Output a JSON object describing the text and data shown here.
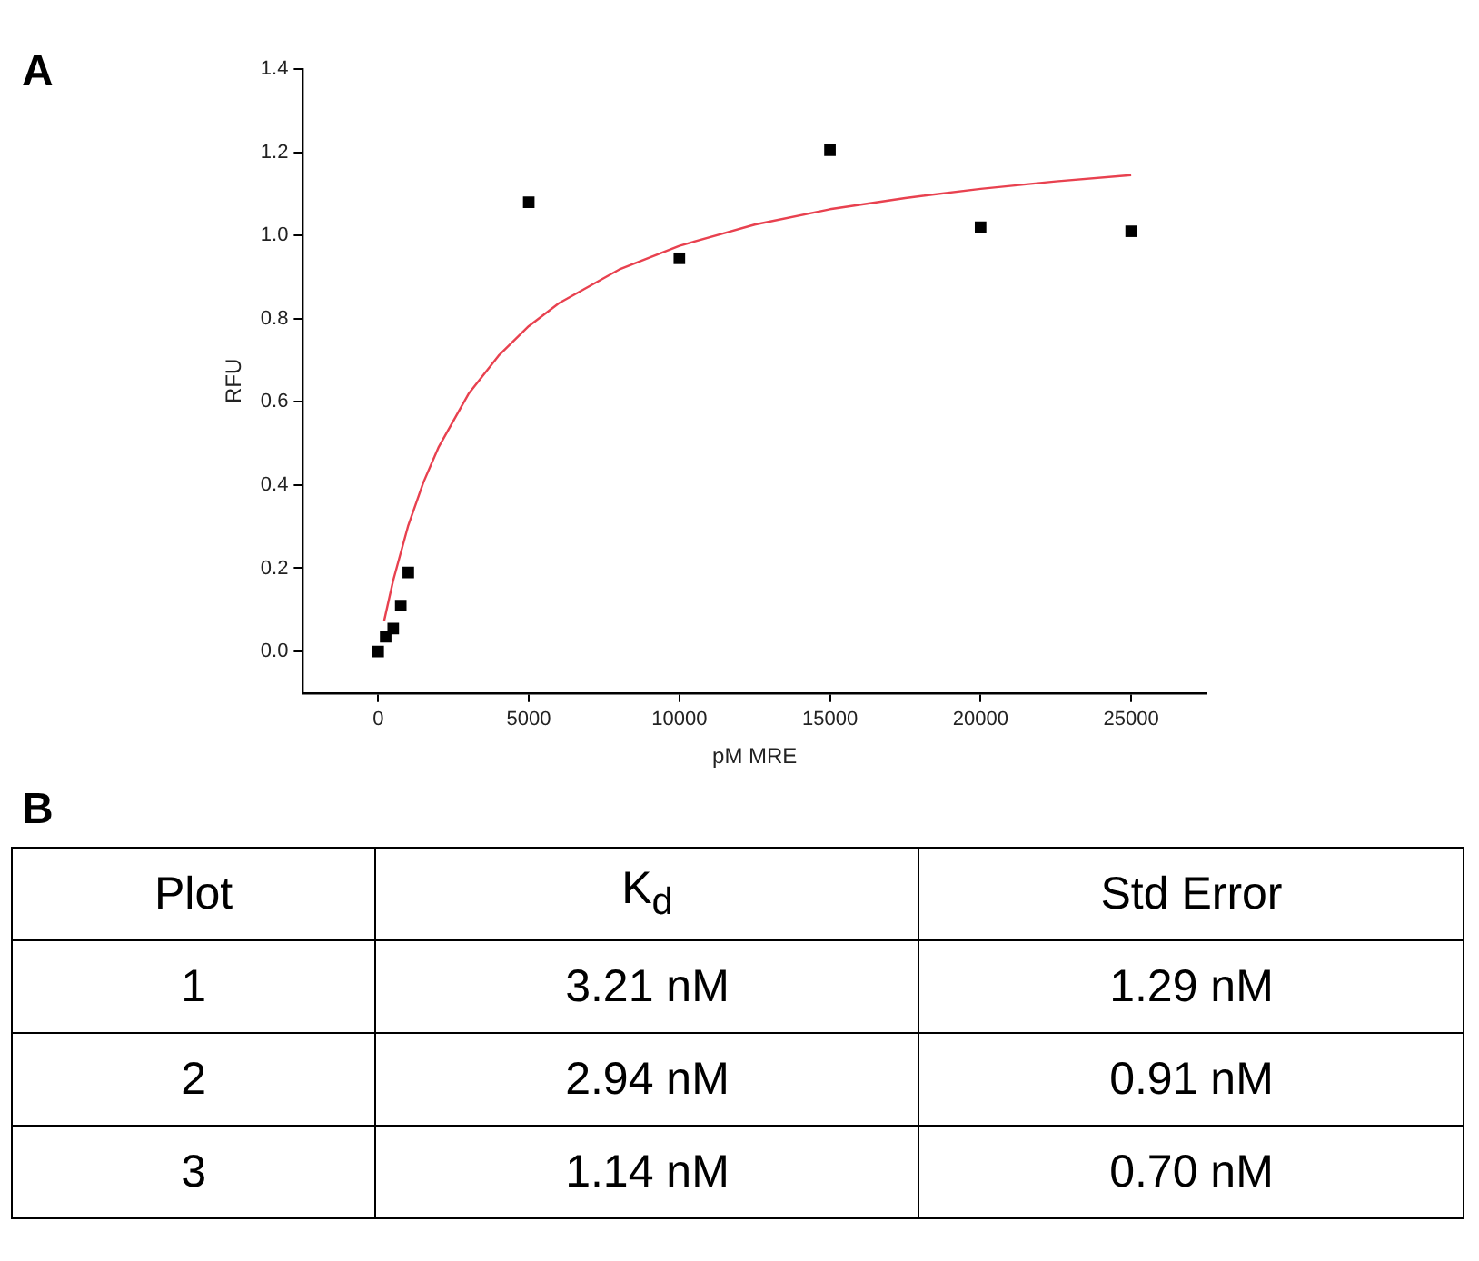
{
  "chart_data": [
    {
      "type": "scatter",
      "title": "A",
      "xlabel": "pM MRE",
      "ylabel": "RFU",
      "xlim": [
        -2500,
        27500
      ],
      "ylim": [
        -0.1,
        1.4
      ],
      "xticks": [
        0,
        5000,
        10000,
        15000,
        20000,
        25000
      ],
      "yticks": [
        {
          "value": 0,
          "label": "0.0"
        },
        0.2,
        0.4,
        0.6,
        0.8,
        {
          "value": 1,
          "label": "1.0"
        },
        1.2,
        1.4
      ],
      "grid": false,
      "legend": false,
      "series": [
        {
          "color": "#000000",
          "marker": "square",
          "x": [
            0,
            250,
            500,
            750,
            1000,
            5000,
            10000,
            15000,
            20000,
            25000
          ],
          "values": [
            0,
            0.035,
            0.055,
            0.11,
            0.19,
            1.08,
            0.945,
            1.205,
            1.02,
            1.01
          ]
        },
        {
          "type": "line",
          "marker": "none",
          "color": "#e8414f",
          "x": [
            200,
            500,
            1000,
            1500,
            2000,
            3000,
            4000,
            5000,
            6000,
            8000,
            10000,
            12500,
            15000,
            17500,
            20000,
            22500,
            25000
          ],
          "values": [
            0.074,
            0.171,
            0.303,
            0.406,
            0.49,
            0.619,
            0.711,
            0.782,
            0.837,
            0.918,
            0.975,
            1.026,
            1.063,
            1.09,
            1.112,
            1.13,
            1.145
          ]
        }
      ]
    },
    {
      "type": "other",
      "title": "B",
      "categories": [
        "Plot",
        "K$_{d}$",
        "Std Error"
      ],
      "annotations": [
        "1",
        "3.21 nM",
        "1.29 nM",
        "2",
        "2.94 nM",
        "0.91 nM",
        "3",
        "1.14 nM",
        "0.70 nM"
      ]
    }
  ]
}
